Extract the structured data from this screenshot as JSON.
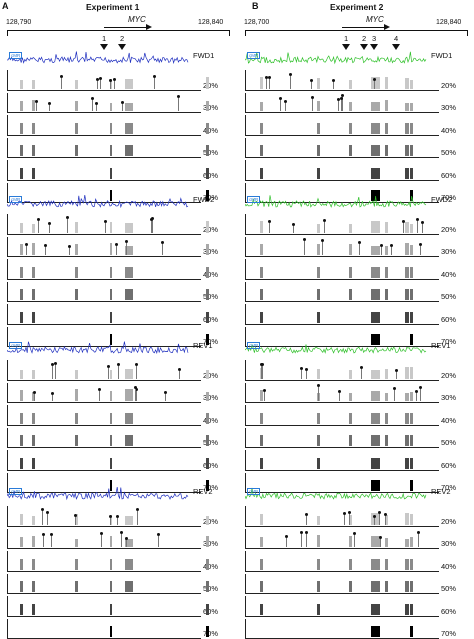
{
  "panels": [
    {
      "letter": "A",
      "title": "Experiment 1",
      "coord_left": "128,790",
      "coord_right": "128,840",
      "gene": "MYC",
      "signal_color": "#1f2fbf",
      "badge": "cMR",
      "markers": [
        "1",
        "2"
      ],
      "groups": [
        {
          "name": "FWD1",
          "levels": [
            "20%",
            "30%",
            "40%",
            "50%",
            "60%",
            "70%"
          ]
        },
        {
          "name": "FWD2",
          "levels": [
            "20%",
            "30%",
            "40%",
            "50%",
            "60%",
            "70%"
          ]
        },
        {
          "name": "REV1",
          "levels": [
            "20%",
            "30%",
            "40%",
            "50%",
            "60%",
            "70%"
          ]
        },
        {
          "name": "REV2",
          "levels": [
            "20%",
            "30%",
            "40%",
            "50%",
            "60%",
            "70%"
          ]
        }
      ]
    },
    {
      "letter": "B",
      "title": "Experiment 2",
      "coord_left": "128,700",
      "coord_right": "128,840",
      "gene": "MYC",
      "signal_color": "#2fc02a",
      "badge": "cMR",
      "markers": [
        "1",
        "2",
        "3",
        "4"
      ],
      "groups": [
        {
          "name": "FWD1",
          "levels": [
            "20%",
            "30%",
            "40%",
            "50%",
            "60%",
            "70%"
          ]
        },
        {
          "name": "FWD2",
          "levels": [
            "20%",
            "30%",
            "40%",
            "50%",
            "60%",
            "70%"
          ]
        },
        {
          "name": "REV1",
          "levels": [
            "20%",
            "30%",
            "40%",
            "50%",
            "60%",
            "70%"
          ]
        },
        {
          "name": "REV2",
          "levels": [
            "20%",
            "30%",
            "40%",
            "50%",
            "60%",
            "70%"
          ]
        }
      ]
    }
  ]
}
